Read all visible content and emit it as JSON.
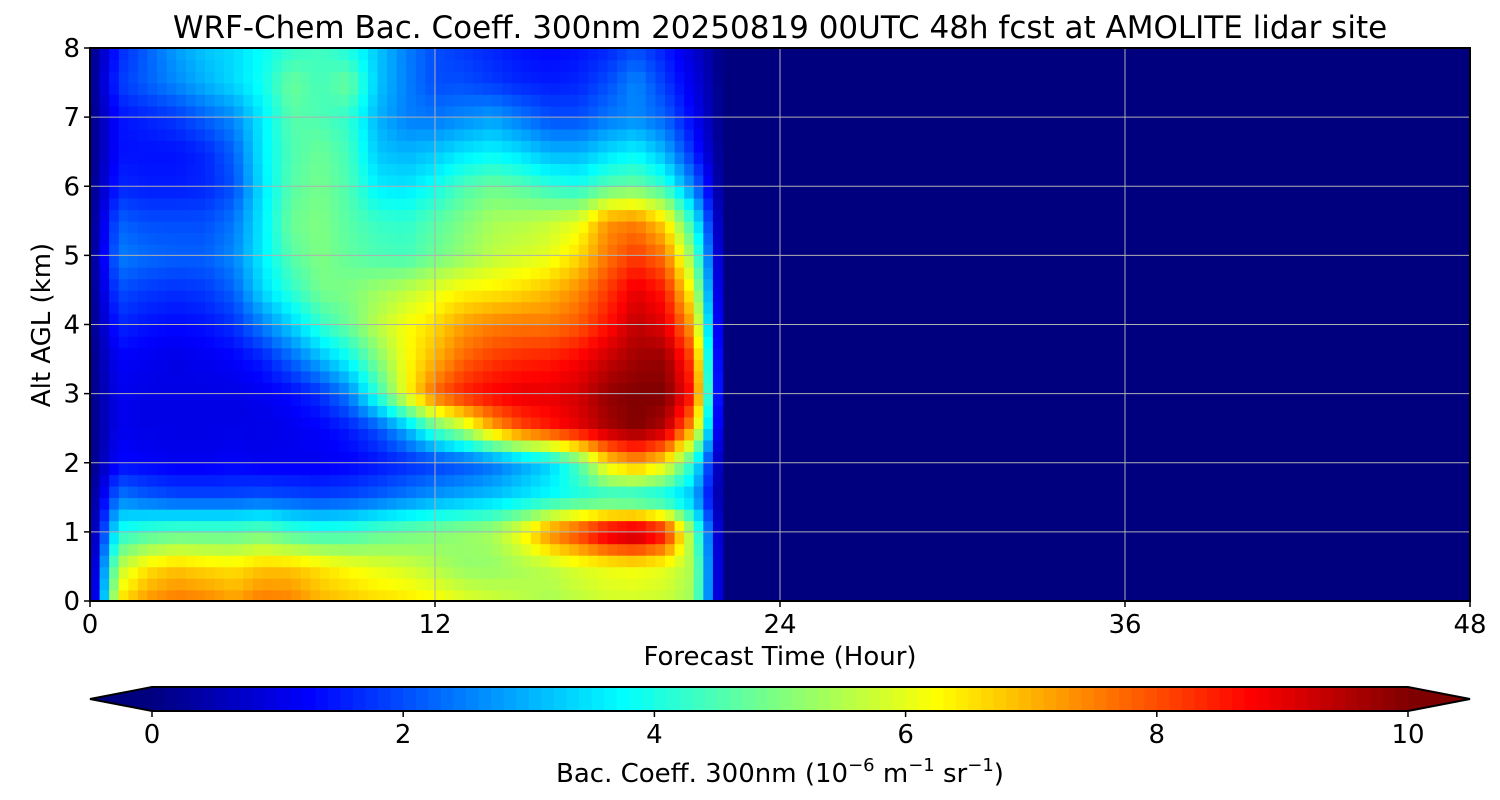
{
  "chart_data": {
    "type": "heatmap",
    "title": "WRF-Chem Bac. Coeff. 300nm  20250819 00UTC 48h fcst at AMOLITE lidar site",
    "xlabel": "Forecast Time (Hour)",
    "ylabel": "Alt AGL (km)",
    "xlim": [
      0,
      48
    ],
    "ylim": [
      0,
      8
    ],
    "x_ticks": [
      0,
      12,
      24,
      36,
      48
    ],
    "y_ticks": [
      0,
      1,
      2,
      3,
      4,
      5,
      6,
      7,
      8
    ],
    "grid": true,
    "colormap": "jet",
    "colorbar": {
      "orientation": "horizontal",
      "extend": "both",
      "range": [
        0,
        10
      ],
      "ticks": [
        0,
        2,
        4,
        6,
        8,
        10
      ],
      "label": {
        "prefix": "Bac. Coeff. 300nm  (10",
        "exp1": "−6",
        "mid": " m",
        "exp2": "−1",
        "mid2": " sr",
        "exp3": "−1",
        "suffix": ")"
      }
    },
    "x": [
      0,
      1,
      2,
      3,
      4,
      5,
      6,
      7,
      8,
      9,
      10,
      11,
      12,
      13,
      14,
      15,
      16,
      17,
      18,
      19,
      20,
      21,
      22,
      23,
      24,
      48
    ],
    "y": [
      0,
      0.5,
      1,
      1.5,
      2,
      2.5,
      3,
      3.5,
      4,
      4.5,
      5,
      5.5,
      6,
      6.5,
      7,
      7.5,
      8
    ],
    "z": [
      [
        0.0,
        6.5,
        7.3,
        7.6,
        7.5,
        7.2,
        7.6,
        7.5,
        7.0,
        6.8,
        6.6,
        6.5,
        6.3,
        6.0,
        5.8,
        5.6,
        5.4,
        5.6,
        5.8,
        5.8,
        5.7,
        5.3,
        0.0,
        0.0,
        0.0,
        0.0
      ],
      [
        0.0,
        5.6,
        6.5,
        6.8,
        6.6,
        6.5,
        6.8,
        6.8,
        6.5,
        6.2,
        6.0,
        5.8,
        5.5,
        5.2,
        5.2,
        5.4,
        5.6,
        5.9,
        6.1,
        6.2,
        6.0,
        5.4,
        0.0,
        0.0,
        0.0,
        0.0
      ],
      [
        0.0,
        4.0,
        4.4,
        4.6,
        4.6,
        4.6,
        4.8,
        4.4,
        4.2,
        4.3,
        4.6,
        4.8,
        5.0,
        5.2,
        5.4,
        6.2,
        7.5,
        8.3,
        9.3,
        9.7,
        8.8,
        5.0,
        0.0,
        0.0,
        0.0,
        0.0
      ],
      [
        0.0,
        2.5,
        2.2,
        2.0,
        2.0,
        2.0,
        2.1,
        2.0,
        1.9,
        2.0,
        2.2,
        2.5,
        2.8,
        3.0,
        3.2,
        3.5,
        3.8,
        4.0,
        4.0,
        3.8,
        3.6,
        3.0,
        0.0,
        0.0,
        0.0,
        0.0
      ],
      [
        0.0,
        1.3,
        1.2,
        1.1,
        1.1,
        1.2,
        1.1,
        1.1,
        1.1,
        1.2,
        1.4,
        1.6,
        1.8,
        2.0,
        2.3,
        2.8,
        3.3,
        4.5,
        6.5,
        7.2,
        6.4,
        4.0,
        0.0,
        0.0,
        0.0,
        0.0
      ],
      [
        0.0,
        1.1,
        1.0,
        1.0,
        1.0,
        1.0,
        1.0,
        1.1,
        1.2,
        1.5,
        2.0,
        3.0,
        4.5,
        5.5,
        7.0,
        8.0,
        8.5,
        9.0,
        9.6,
        10.0,
        9.5,
        7.0,
        0.0,
        0.0,
        0.0,
        0.0
      ],
      [
        0.0,
        1.1,
        1.0,
        1.0,
        1.0,
        1.0,
        1.1,
        1.3,
        1.7,
        2.5,
        4.2,
        6.2,
        7.8,
        8.5,
        8.8,
        9.0,
        9.0,
        9.2,
        9.8,
        10.0,
        10.0,
        8.5,
        0.0,
        0.0,
        0.0,
        0.0
      ],
      [
        0.0,
        1.2,
        1.1,
        1.0,
        1.1,
        1.2,
        1.5,
        2.2,
        3.0,
        3.8,
        5.0,
        6.2,
        7.0,
        7.8,
        8.2,
        8.4,
        8.5,
        8.8,
        9.3,
        9.7,
        9.8,
        8.0,
        0.0,
        0.0,
        0.0,
        0.0
      ],
      [
        0.0,
        1.6,
        1.4,
        1.3,
        1.4,
        1.7,
        2.5,
        3.3,
        4.2,
        4.8,
        5.6,
        6.2,
        6.6,
        7.2,
        7.5,
        7.6,
        7.6,
        7.9,
        8.6,
        9.4,
        9.0,
        7.0,
        0.0,
        0.0,
        0.0,
        0.0
      ],
      [
        0.0,
        2.0,
        1.8,
        1.7,
        1.8,
        2.2,
        3.4,
        4.2,
        4.9,
        5.0,
        5.3,
        5.6,
        6.0,
        6.3,
        6.4,
        6.6,
        6.9,
        7.4,
        8.2,
        9.0,
        8.5,
        6.0,
        0.0,
        0.0,
        0.0,
        0.0
      ],
      [
        0.0,
        2.5,
        2.3,
        2.2,
        2.2,
        2.6,
        3.6,
        4.6,
        5.0,
        4.7,
        4.5,
        4.4,
        4.8,
        5.2,
        5.6,
        5.8,
        6.0,
        6.6,
        7.6,
        8.2,
        7.6,
        5.0,
        0.0,
        0.0,
        0.0,
        0.0
      ],
      [
        0.0,
        2.2,
        2.0,
        2.0,
        2.0,
        2.4,
        3.6,
        4.8,
        5.0,
        4.6,
        4.3,
        4.2,
        4.6,
        5.0,
        5.4,
        5.5,
        5.7,
        6.0,
        7.3,
        7.5,
        6.6,
        4.0,
        0.0,
        0.0,
        0.0,
        0.0
      ],
      [
        0.0,
        1.6,
        1.5,
        1.5,
        1.6,
        2.0,
        3.5,
        4.6,
        4.9,
        4.5,
        3.6,
        3.5,
        3.9,
        4.5,
        4.8,
        4.6,
        4.2,
        4.0,
        4.6,
        4.8,
        4.2,
        2.5,
        0.0,
        0.0,
        0.0,
        0.0
      ],
      [
        0.0,
        1.4,
        1.4,
        1.4,
        1.6,
        2.2,
        3.6,
        4.5,
        4.8,
        4.4,
        3.2,
        3.0,
        3.2,
        3.5,
        3.7,
        3.4,
        3.0,
        3.0,
        3.4,
        3.7,
        3.0,
        1.6,
        0.0,
        0.0,
        0.0,
        0.0
      ],
      [
        0.0,
        1.4,
        1.6,
        1.8,
        2.2,
        2.6,
        3.6,
        4.6,
        4.5,
        4.2,
        3.0,
        2.5,
        2.4,
        2.6,
        2.8,
        2.4,
        2.0,
        2.0,
        2.4,
        2.6,
        2.2,
        1.2,
        0.0,
        0.0,
        0.0,
        0.0
      ],
      [
        0.0,
        1.8,
        2.2,
        2.6,
        3.0,
        3.4,
        3.9,
        4.8,
        4.4,
        4.8,
        3.2,
        2.5,
        2.0,
        2.0,
        1.8,
        1.6,
        1.5,
        1.6,
        2.0,
        2.6,
        1.8,
        1.0,
        0.0,
        0.0,
        0.0,
        0.0
      ],
      [
        0.0,
        1.6,
        2.2,
        2.8,
        3.2,
        3.4,
        3.8,
        4.2,
        4.4,
        4.0,
        3.2,
        2.5,
        2.0,
        1.8,
        1.6,
        1.4,
        1.3,
        1.4,
        1.6,
        2.0,
        1.5,
        0.8,
        0.0,
        0.0,
        0.0,
        0.0
      ]
    ]
  }
}
